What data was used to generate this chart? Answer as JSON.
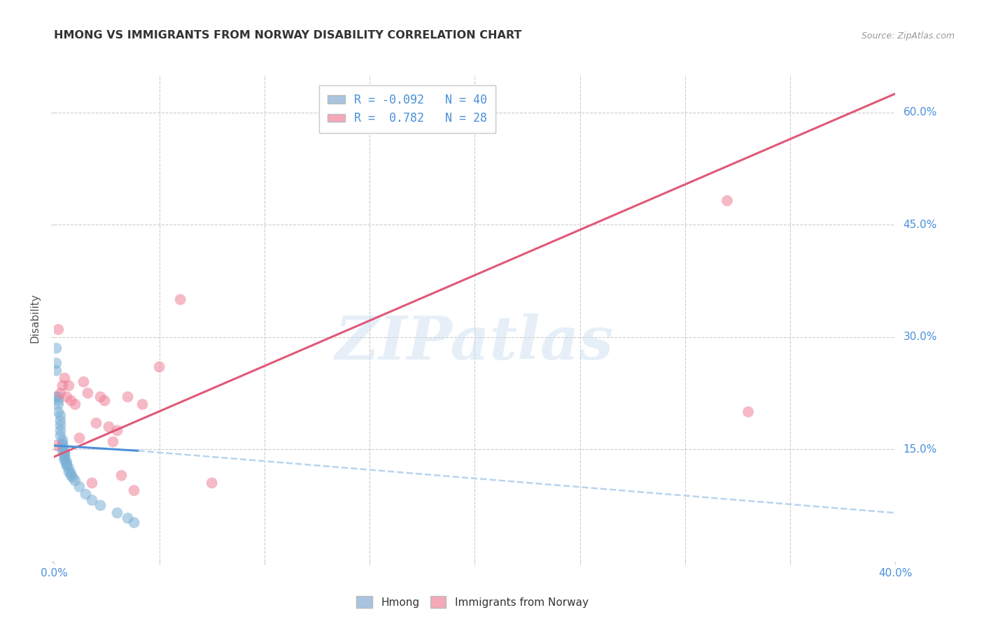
{
  "title": "HMONG VS IMMIGRANTS FROM NORWAY DISABILITY CORRELATION CHART",
  "source": "Source: ZipAtlas.com",
  "ylabel": "Disability",
  "watermark": "ZIPatlas",
  "xlim": [
    0.0,
    0.4
  ],
  "ylim": [
    0.0,
    0.65
  ],
  "xticks": [
    0.0,
    0.05,
    0.1,
    0.15,
    0.2,
    0.25,
    0.3,
    0.35,
    0.4
  ],
  "yticks": [
    0.0,
    0.15,
    0.3,
    0.45,
    0.6
  ],
  "hmong_R": -0.092,
  "hmong_N": 40,
  "norway_R": 0.782,
  "norway_N": 28,
  "legend_color_hmong": "#a8c4e0",
  "legend_color_norway": "#f4a8b8",
  "scatter_color_hmong": "#7aafd4",
  "scatter_color_norway": "#f08098",
  "line_color_hmong": "#4a90d9",
  "line_color_norway": "#e05878",
  "line_dashed_color_hmong": "#b8d4ee",
  "grid_color": "#cccccc",
  "norway_line_x0": 0.0,
  "norway_line_y0": 0.14,
  "norway_line_x1": 0.4,
  "norway_line_y1": 0.625,
  "hmong_line_solid_x0": 0.0,
  "hmong_line_solid_y0": 0.155,
  "hmong_line_solid_x1": 0.04,
  "hmong_line_solid_y1": 0.148,
  "hmong_line_dash_x0": 0.04,
  "hmong_line_dash_y0": 0.148,
  "hmong_line_dash_x1": 0.4,
  "hmong_line_dash_y1": 0.065,
  "hmong_x": [
    0.001,
    0.001,
    0.001,
    0.001,
    0.002,
    0.002,
    0.002,
    0.002,
    0.003,
    0.003,
    0.003,
    0.003,
    0.003,
    0.004,
    0.004,
    0.004,
    0.004,
    0.004,
    0.005,
    0.005,
    0.005,
    0.005,
    0.005,
    0.005,
    0.006,
    0.006,
    0.006,
    0.007,
    0.007,
    0.008,
    0.008,
    0.009,
    0.01,
    0.012,
    0.015,
    0.018,
    0.022,
    0.03,
    0.035,
    0.038
  ],
  "hmong_y": [
    0.285,
    0.265,
    0.255,
    0.22,
    0.22,
    0.215,
    0.21,
    0.2,
    0.195,
    0.188,
    0.182,
    0.175,
    0.168,
    0.162,
    0.158,
    0.155,
    0.152,
    0.148,
    0.148,
    0.145,
    0.143,
    0.14,
    0.138,
    0.135,
    0.133,
    0.13,
    0.128,
    0.125,
    0.12,
    0.118,
    0.115,
    0.112,
    0.108,
    0.1,
    0.09,
    0.082,
    0.075,
    0.065,
    0.058,
    0.052
  ],
  "norway_x": [
    0.001,
    0.002,
    0.003,
    0.004,
    0.005,
    0.006,
    0.007,
    0.008,
    0.01,
    0.012,
    0.014,
    0.016,
    0.018,
    0.02,
    0.022,
    0.024,
    0.026,
    0.028,
    0.03,
    0.032,
    0.035,
    0.038,
    0.042,
    0.05,
    0.06,
    0.075,
    0.32,
    0.33
  ],
  "norway_y": [
    0.155,
    0.31,
    0.225,
    0.235,
    0.245,
    0.22,
    0.235,
    0.215,
    0.21,
    0.165,
    0.24,
    0.225,
    0.105,
    0.185,
    0.22,
    0.215,
    0.18,
    0.16,
    0.175,
    0.115,
    0.22,
    0.095,
    0.21,
    0.26,
    0.35,
    0.105,
    0.482,
    0.2
  ]
}
